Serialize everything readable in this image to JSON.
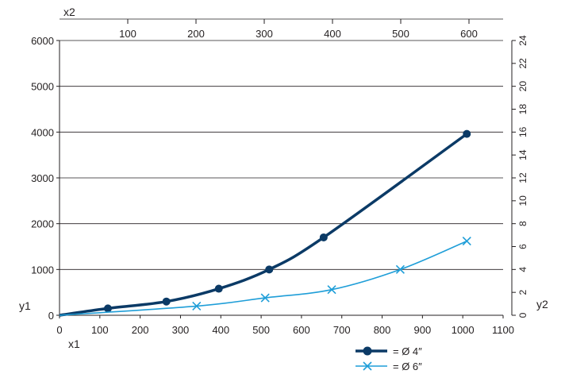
{
  "chart_data": {
    "type": "line",
    "title": "",
    "xlabel": "x1",
    "ylabel": "y1",
    "x2label": "x2",
    "y2label": "y2",
    "xlim": [
      0,
      1100
    ],
    "ylim": [
      0,
      6000
    ],
    "x2lim": [
      0,
      650
    ],
    "y2lim": [
      0,
      24
    ],
    "xticks": [
      0,
      100,
      200,
      300,
      400,
      500,
      600,
      700,
      800,
      900,
      1000,
      1100
    ],
    "yticks": [
      0,
      1000,
      2000,
      3000,
      4000,
      5000,
      6000
    ],
    "x2ticks": [
      100,
      200,
      300,
      400,
      500,
      600
    ],
    "y2ticks": [
      0,
      2,
      4,
      6,
      8,
      10,
      12,
      14,
      16,
      18,
      20,
      22,
      24
    ],
    "grid": "horizontal",
    "legend_position": "bottom-right",
    "series": [
      {
        "name": "= Ø 4″",
        "color": "#0b3a66",
        "marker": "circle",
        "x": [
          0,
          120,
          265,
          395,
          520,
          655,
          1010
        ],
        "y": [
          0,
          150,
          300,
          580,
          1000,
          1700,
          3960
        ]
      },
      {
        "name": "= Ø 6″",
        "color": "#1f9ed8",
        "marker": "x",
        "x": [
          0,
          340,
          510,
          675,
          845,
          1010
        ],
        "y": [
          0,
          200,
          380,
          560,
          1000,
          1620
        ]
      }
    ]
  }
}
